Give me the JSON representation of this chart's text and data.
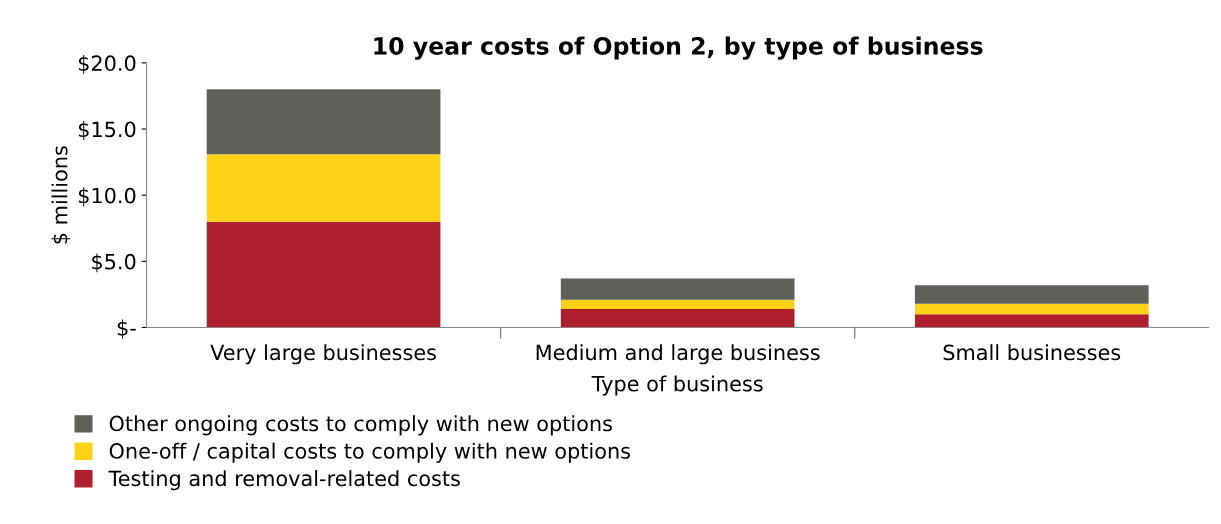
{
  "chart_data": {
    "type": "bar",
    "title": "10 year costs of Option 2, by type of business",
    "xlabel": "Type of business",
    "ylabel": "$ millions",
    "categories": [
      "Very large businesses",
      "Medium and large business",
      "Small businesses"
    ],
    "stacked": true,
    "series": [
      {
        "name": "Testing and removal-related costs",
        "color": "#b01f2e",
        "values": [
          8.0,
          1.4,
          1.0
        ]
      },
      {
        "name": "One-off / capital costs to comply with new options",
        "color": "#fcd116",
        "values": [
          5.1,
          0.7,
          0.8
        ]
      },
      {
        "name": "Other ongoing costs to comply with new options",
        "color": "#5f605a",
        "values": [
          4.9,
          1.6,
          1.4
        ]
      }
    ],
    "ylim": [
      0,
      20
    ],
    "yticks": [
      {
        "value": 0,
        "label": "$-"
      },
      {
        "value": 5,
        "label": "$5.0"
      },
      {
        "value": 10,
        "label": "$10.0"
      },
      {
        "value": 15,
        "label": "$15.0"
      },
      {
        "value": 20,
        "label": "$20.0"
      }
    ],
    "grid": false,
    "legend": "bottom left"
  }
}
